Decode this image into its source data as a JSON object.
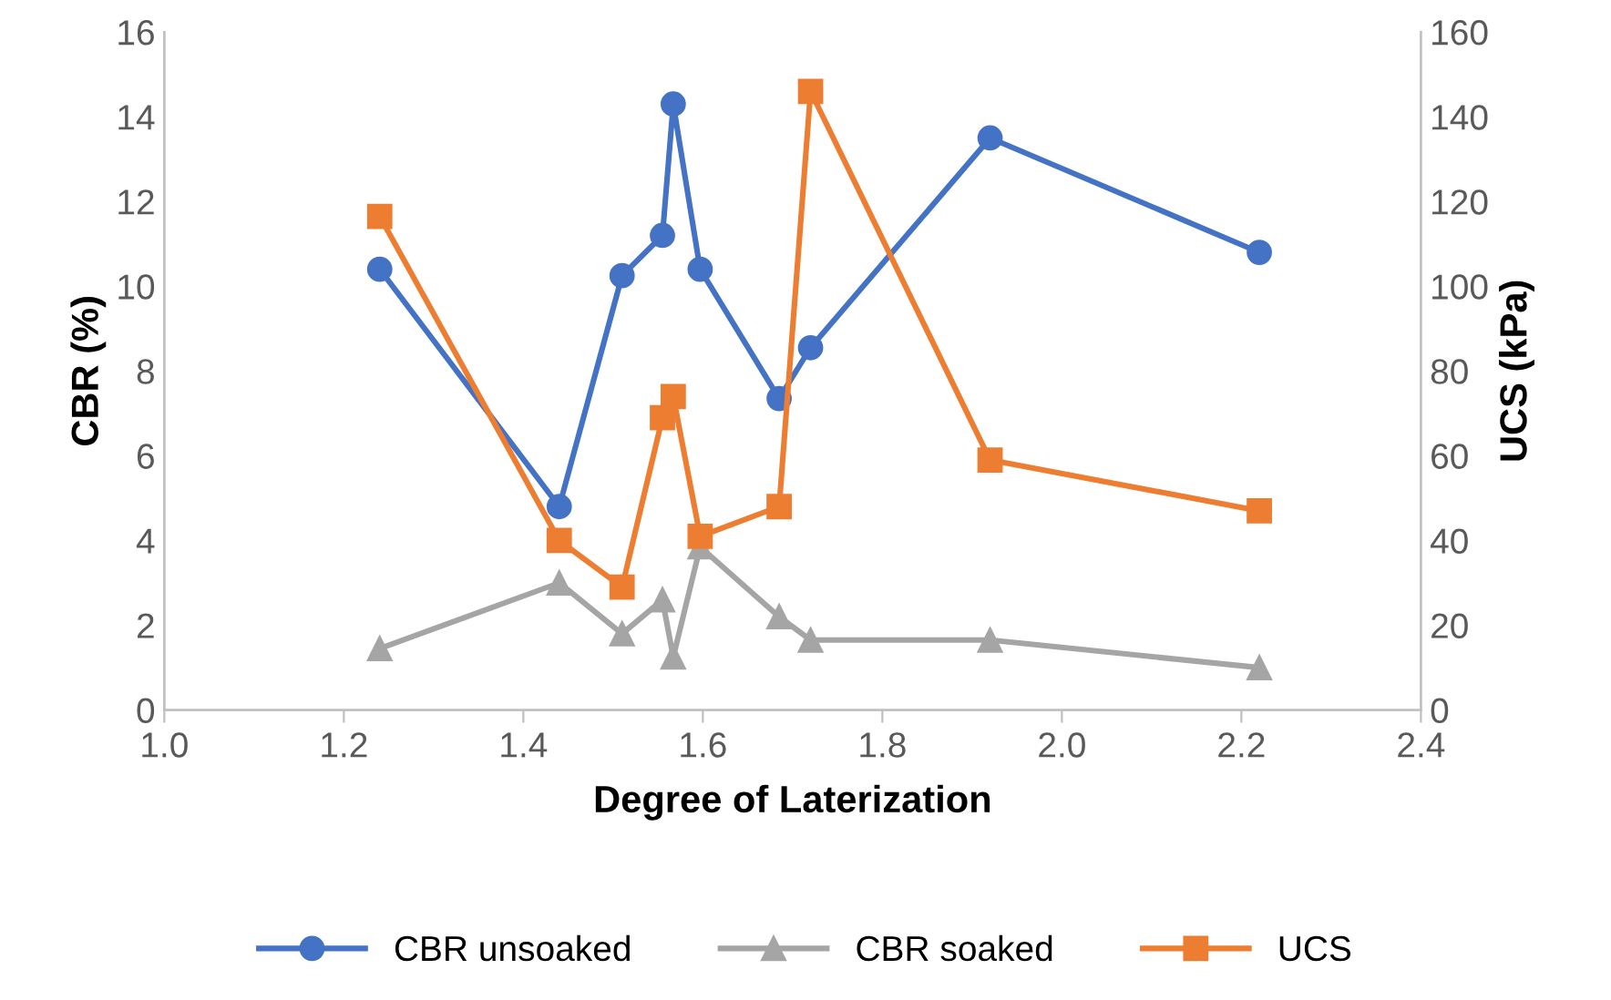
{
  "chart_data": {
    "type": "line",
    "xlabel": "Degree of Laterization",
    "ylabel": "CBR (%)",
    "y2label": "UCS (kPa)",
    "xlim": [
      1.0,
      2.4
    ],
    "xticks": [
      {
        "value": 1.0,
        "label": "1.0"
      },
      {
        "value": 1.2,
        "label": "1.2"
      },
      {
        "value": 1.4,
        "label": "1.4"
      },
      {
        "value": 1.6,
        "label": "1.6"
      },
      {
        "value": 1.8,
        "label": "1.8"
      },
      {
        "value": 2.0,
        "label": "2.0"
      },
      {
        "value": 2.2,
        "label": "2.2"
      },
      {
        "value": 2.4,
        "label": "2.4"
      }
    ],
    "ylim": [
      0,
      16
    ],
    "yticks": [
      0,
      2,
      4,
      6,
      8,
      10,
      12,
      14,
      16
    ],
    "y2lim": [
      0,
      160
    ],
    "y2ticks": [
      0,
      20,
      40,
      60,
      80,
      100,
      120,
      140,
      160
    ],
    "x": [
      1.24,
      1.44,
      1.51,
      1.555,
      1.567,
      1.597,
      1.685,
      1.72,
      1.92,
      2.22
    ],
    "series": [
      {
        "name": "CBR unsoaked",
        "color": "#4472c4",
        "marker": "circle",
        "values": [
          10.4,
          4.8,
          10.25,
          11.2,
          14.3,
          10.4,
          7.35,
          8.55,
          13.5,
          10.8
        ]
      },
      {
        "name": "CBR soaked",
        "color": "#a5a5a5",
        "marker": "triangle",
        "values": [
          1.45,
          3.0,
          1.8,
          2.6,
          1.25,
          3.85,
          2.2,
          1.65,
          1.65,
          1.0
        ]
      },
      {
        "name": "UCS",
        "color": "#ed7d31",
        "marker": "square",
        "axis": "y2",
        "values": [
          116.5,
          40,
          29,
          69,
          74,
          41,
          48,
          146,
          59,
          47
        ]
      }
    ],
    "grid": false,
    "legend": "bottom",
    "line_style": "solid"
  }
}
